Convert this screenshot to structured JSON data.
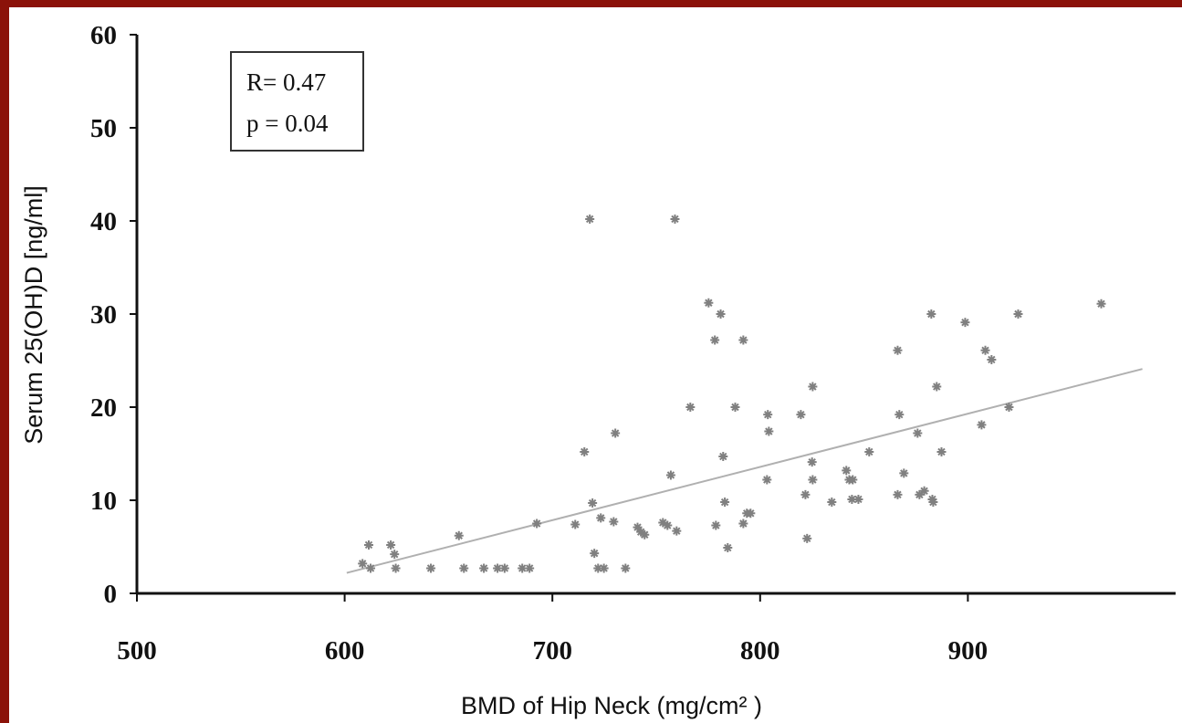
{
  "chart_data": {
    "type": "scatter",
    "xlabel": "BMD of Hip Neck (mg/cm² )",
    "ylabel": "Serum  25(OH)D [ng/ml]",
    "annotations": [
      "R= 0.47",
      "p = 0.04"
    ],
    "xlim": [
      500,
      1000
    ],
    "ylim": [
      0,
      60
    ],
    "xticks": [
      500,
      600,
      700,
      800,
      900
    ],
    "yticks": [
      0,
      10,
      20,
      30,
      40,
      50,
      60
    ],
    "color": "#808080",
    "trend": {
      "x": [
        601,
        984
      ],
      "y": [
        2.2,
        24.1
      ],
      "color": "#b0b0b0"
    },
    "x": [
      608.6,
      611.6,
      612.5,
      622.2,
      624.0,
      624.6,
      641.5,
      655.0,
      657.4,
      667.0,
      673.6,
      677.0,
      685.5,
      689.0,
      692.5,
      711.0,
      715.4,
      718.0,
      719.3,
      720.2,
      722.0,
      723.3,
      724.8,
      729.5,
      730.3,
      735.2,
      741.0,
      742.6,
      744.4,
      753.2,
      755.4,
      757.0,
      759.0,
      759.8,
      766.4,
      775.2,
      778.2,
      778.7,
      781.0,
      782.2,
      783.0,
      784.4,
      788.0,
      791.9,
      791.9,
      793.6,
      795.4,
      803.7,
      804.2,
      803.3,
      819.6,
      821.8,
      822.6,
      825.3,
      825.0,
      825.3,
      834.5,
      841.5,
      842.9,
      844.6,
      844.2,
      847.3,
      852.5,
      866.2,
      867.0,
      866.2,
      869.2,
      875.8,
      876.7,
      879.0,
      882.4,
      882.9,
      883.3,
      885.0,
      887.3,
      898.7,
      906.6,
      908.4,
      911.4,
      919.8,
      924.2,
      964.2
    ],
    "y": [
      3.2,
      5.2,
      2.7,
      5.2,
      4.2,
      2.7,
      2.7,
      6.2,
      2.7,
      2.7,
      2.7,
      2.7,
      2.7,
      2.7,
      7.5,
      7.4,
      15.2,
      40.2,
      9.7,
      4.3,
      2.7,
      8.1,
      2.7,
      7.7,
      17.2,
      2.7,
      7.1,
      6.6,
      6.3,
      7.6,
      7.3,
      12.7,
      40.2,
      6.7,
      20.0,
      31.2,
      27.2,
      7.3,
      30.0,
      14.7,
      9.8,
      4.9,
      20.0,
      27.2,
      7.5,
      8.6,
      8.6,
      19.2,
      17.4,
      12.2,
      19.2,
      10.6,
      5.9,
      22.2,
      14.1,
      12.2,
      9.8,
      13.2,
      12.2,
      12.2,
      10.1,
      10.1,
      15.2,
      26.1,
      19.2,
      10.6,
      12.9,
      17.2,
      10.6,
      11.0,
      30.0,
      10.1,
      9.8,
      22.2,
      15.2,
      29.1,
      18.1,
      26.1,
      25.1,
      20.0,
      30.0,
      31.1
    ]
  }
}
